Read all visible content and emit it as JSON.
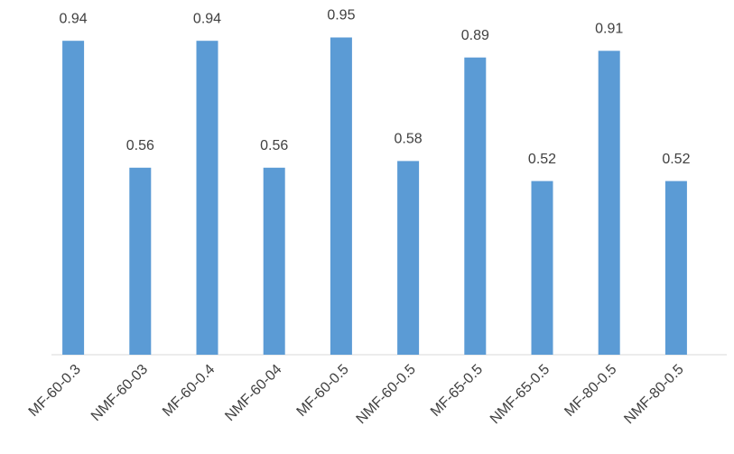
{
  "chart_data": {
    "type": "bar",
    "categories": [
      "MF-60-0.3",
      "NMF-60-03",
      "MF-60-0.4",
      "NMF-60-04",
      "MF-60-0.5",
      "NMF-60-0.5",
      "MF-65-0.5",
      "NMF-65-0.5",
      "MF-80-0.5",
      "NMF-80-0.5"
    ],
    "values": [
      0.94,
      0.56,
      0.94,
      0.56,
      0.95,
      0.58,
      0.89,
      0.52,
      0.91,
      0.52
    ],
    "color": "#5b9bd5",
    "ylim": [
      0,
      1
    ]
  }
}
